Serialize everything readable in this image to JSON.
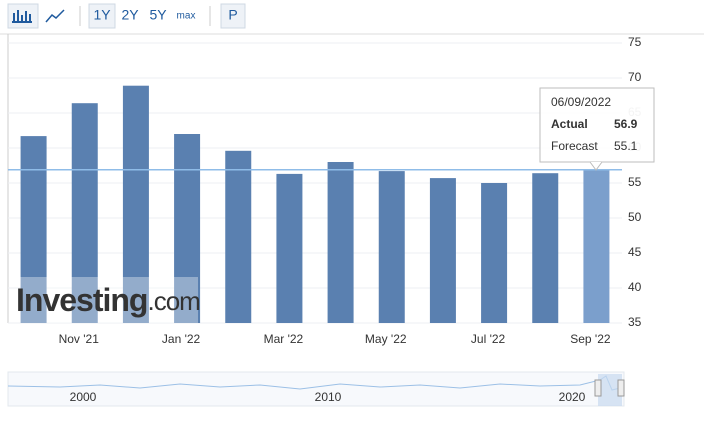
{
  "toolbar": {
    "ranges": [
      "1Y",
      "2Y",
      "5Y",
      "max"
    ],
    "p_button": "P"
  },
  "chart_data": {
    "type": "bar",
    "categories": [
      null,
      "Nov '21",
      null,
      "Jan '22",
      null,
      "Mar '22",
      null,
      "May '22",
      null,
      "Jul '22",
      null,
      "Sep '22"
    ],
    "series": [
      {
        "name": "Actual",
        "color": "#5a80b0",
        "values": [
          61.7,
          66.4,
          68.9,
          62.0,
          59.6,
          56.3,
          58.0,
          56.7,
          55.7,
          55.0,
          56.4,
          56.9
        ]
      }
    ],
    "highlight_color": "#7b9fcc",
    "current_line_color": "#8fbce8",
    "ylim": [
      35,
      75
    ],
    "yticks": [
      35,
      40,
      45,
      50,
      55,
      60,
      65,
      70,
      75
    ],
    "grid": true,
    "tooltip": {
      "date": "06/09/2022",
      "actual_label": "Actual",
      "actual": 56.9,
      "forecast_label": "Forecast",
      "forecast": 55.1
    },
    "watermark": {
      "brand": "Investing",
      "suffix": ".com"
    },
    "navigator": {
      "labels": [
        "2000",
        "2010",
        "2020"
      ]
    }
  }
}
